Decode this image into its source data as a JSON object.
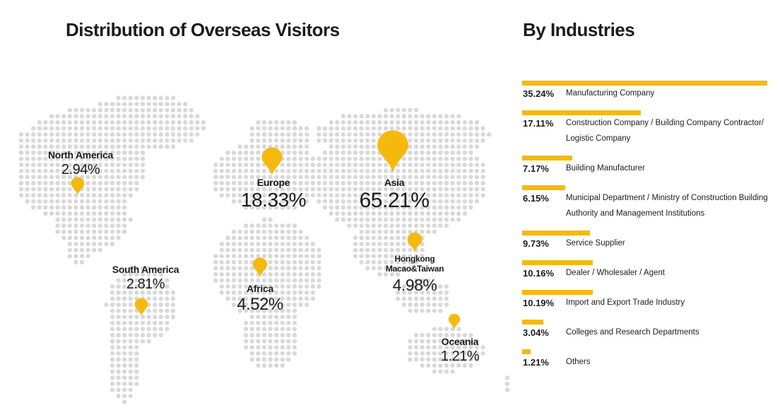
{
  "map_title": "Distribution of Overseas Visitors",
  "industries_title": "By Industries",
  "accent_color": "#f5b90e",
  "dot_color": "#d8d8d8",
  "chart_data": [
    {
      "type": "map",
      "title": "Distribution of Overseas Visitors",
      "regions": [
        {
          "id": "north-america",
          "name": "North America",
          "value_label": "2.94%",
          "value": 2.94
        },
        {
          "id": "south-america",
          "name": "South America",
          "value_label": "2.81%",
          "value": 2.81
        },
        {
          "id": "europe",
          "name": "Europe",
          "value_label": "18.33%",
          "value": 18.33
        },
        {
          "id": "africa",
          "name": "Africa",
          "value_label": "4.52%",
          "value": 4.52
        },
        {
          "id": "asia",
          "name": "Asia",
          "value_label": "65.21%",
          "value": 65.21
        },
        {
          "id": "hongkong",
          "name": "Hongkong Macao&Taiwan",
          "name_line1": "Hongkong",
          "name_line2": "Macao&Taiwan",
          "value_label": "4.98%",
          "value": 4.98
        },
        {
          "id": "oceania",
          "name": "Oceania",
          "value_label": "1.21%",
          "value": 1.21
        }
      ]
    },
    {
      "type": "bar",
      "title": "By Industries",
      "orientation": "horizontal",
      "max_value": 35.24,
      "items": [
        {
          "value": 35.24,
          "value_label": "35.24%",
          "label": "Manufacturing Company"
        },
        {
          "value": 17.11,
          "value_label": "17.11%",
          "label": "Construction Company / Building Company Contractor/ Logistic Company"
        },
        {
          "value": 7.17,
          "value_label": "7.17%",
          "label": "Building Manufacturer"
        },
        {
          "value": 6.15,
          "value_label": "6.15%",
          "label": "Municipal Department / Ministry of Construction Building Authority and Management Institutions"
        },
        {
          "value": 9.73,
          "value_label": "9.73%",
          "label": "Service Supplier"
        },
        {
          "value": 10.16,
          "value_label": "10.16%",
          "label": "Dealer /  Wholesaler / Agent"
        },
        {
          "value": 10.19,
          "value_label": "10.19%",
          "label": "Import and Export Trade Industry"
        },
        {
          "value": 3.04,
          "value_label": "3.04%",
          "label": "Colleges and Research Departments"
        },
        {
          "value": 1.21,
          "value_label": "1.21%",
          "label": "Others"
        }
      ]
    }
  ]
}
